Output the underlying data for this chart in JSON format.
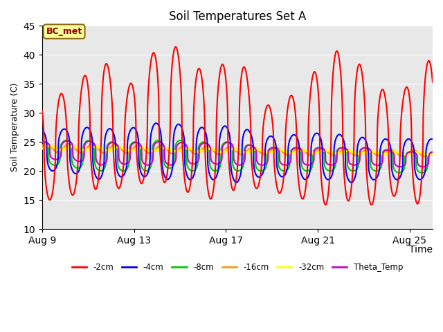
{
  "title": "Soil Temperatures Set A",
  "xlabel": "Time",
  "ylabel": "Soil Temperature (C)",
  "ylim": [
    10,
    45
  ],
  "background_color": "#ffffff",
  "plot_bg_color": "#e8e8e8",
  "annotation_text": "BC_met",
  "annotation_bg": "#ffff99",
  "annotation_border": "#8b6914",
  "annotation_text_color": "#8b0000",
  "xtick_labels": [
    "Aug 9",
    "Aug 13",
    "Aug 17",
    "Aug 21",
    "Aug 25"
  ],
  "xtick_positions": [
    0,
    4,
    8,
    12,
    16
  ],
  "ytick_positions": [
    10,
    15,
    20,
    25,
    30,
    35,
    40,
    45
  ],
  "line_colors": {
    "-2cm": "#ff0000",
    "-4cm": "#0000ff",
    "-8cm": "#00cc00",
    "-16cm": "#ff9900",
    "-32cm": "#ffff00",
    "Theta_Temp": "#cc00cc"
  },
  "line_widths": {
    "-2cm": 1.5,
    "-4cm": 1.5,
    "-8cm": 1.5,
    "-16cm": 1.8,
    "-32cm": 2.5,
    "Theta_Temp": 1.5
  },
  "n_days": 17,
  "n_points_per_day": 288
}
